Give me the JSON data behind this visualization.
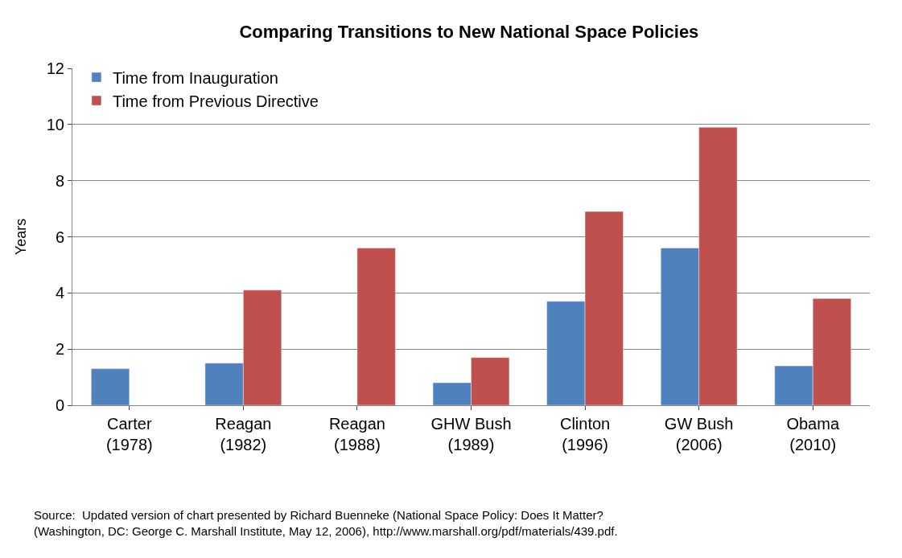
{
  "chart_data": {
    "type": "bar",
    "title": "Comparing Transitions to New National Space Policies",
    "ylabel": "Years",
    "categories": [
      "Carter\n(1978)",
      "Reagan\n(1982)",
      "Reagan\n(1988)",
      "GHW Bush\n(1989)",
      "Clinton\n(1996)",
      "GW Bush\n(2006)",
      "Obama\n(2010)"
    ],
    "series": [
      {
        "name": "Time from Inauguration",
        "color": "#4f81bd",
        "values": [
          1.3,
          1.5,
          null,
          0.8,
          3.7,
          5.6,
          1.4
        ]
      },
      {
        "name": "Time from Previous Directive",
        "color": "#c0504d",
        "values": [
          null,
          4.1,
          5.6,
          1.7,
          6.9,
          9.9,
          3.8
        ]
      }
    ],
    "ylim": [
      0,
      12
    ],
    "yticks": [
      0,
      2,
      4,
      6,
      8,
      10,
      12
    ],
    "grid": "y",
    "legend": "top left",
    "annotations": [
      "Source:  Updated version of chart presented by Richard Buenneke (National Space Policy: Does It Matter?\n(Washington, DC: George C. Marshall Institute, May 12, 2006), http://www.marshall.org/pdf/materials/439.pdf."
    ]
  }
}
